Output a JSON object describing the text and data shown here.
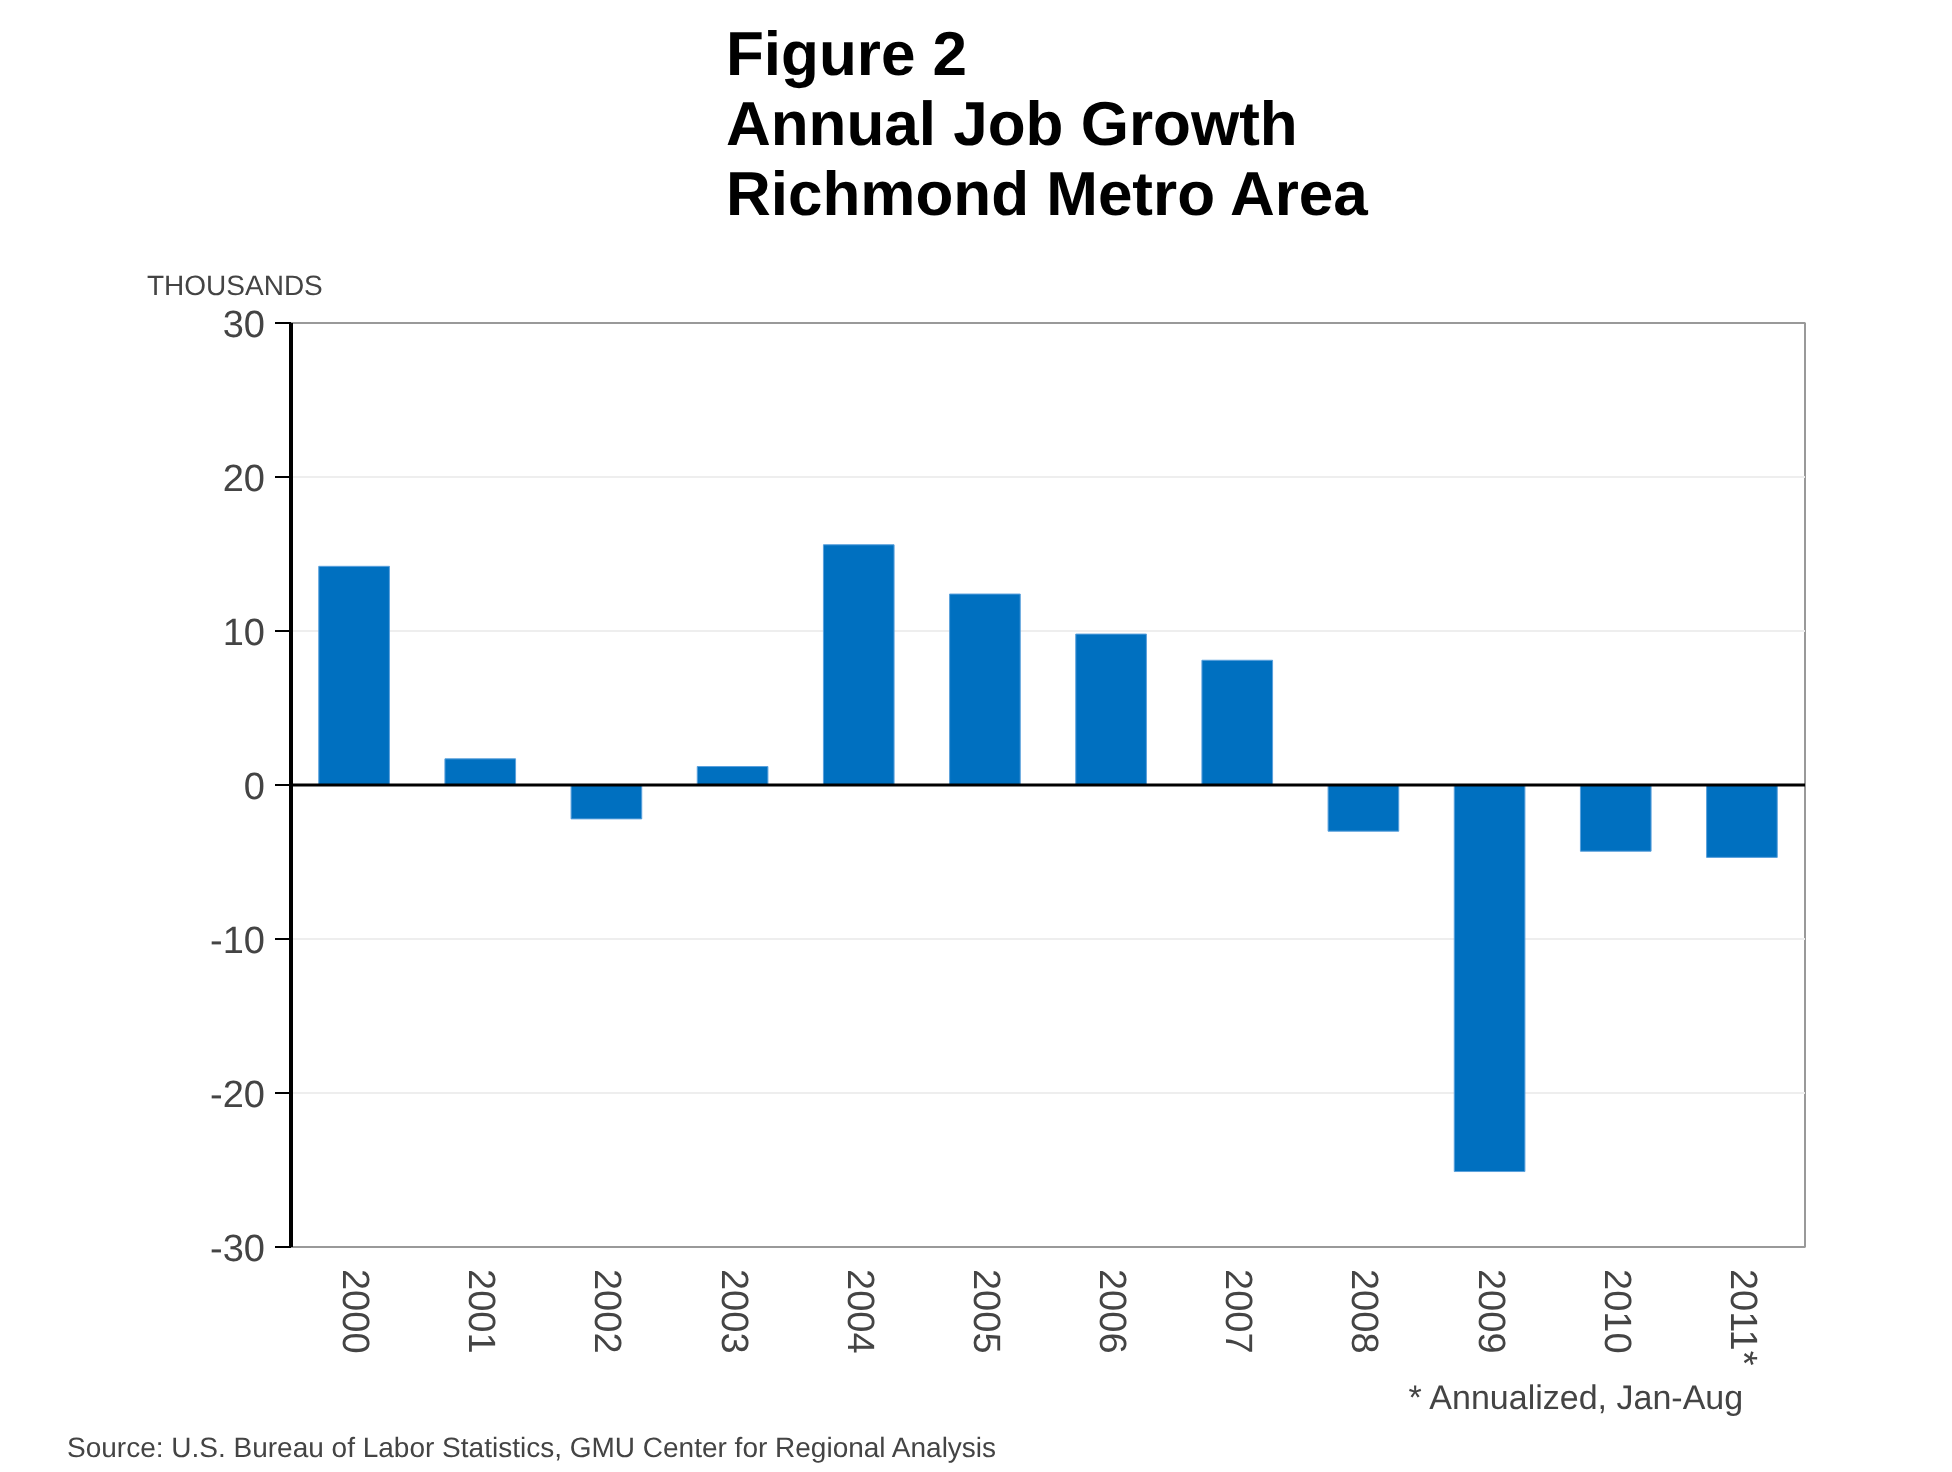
{
  "chart_data": {
    "type": "bar",
    "title": "Figure 2\nAnnual Job Growth\nRichmond Metro Area",
    "ylabel": "THOUSANDS",
    "categories": [
      "2000",
      "2001",
      "2002",
      "2003",
      "2004",
      "2005",
      "2006",
      "2007",
      "2008",
      "2009",
      "2010",
      "2011*"
    ],
    "values": [
      14.2,
      1.7,
      -2.2,
      1.2,
      15.6,
      12.4,
      9.8,
      8.1,
      -3.0,
      -25.1,
      -4.3,
      -4.7
    ],
    "color": "#0070c0",
    "ylim": [
      -30,
      30
    ],
    "yticks": [
      -30,
      -20,
      -10,
      0,
      10,
      20,
      30
    ],
    "grid": "y",
    "legend": false,
    "annotations": [
      "* Annualized, Jan-Aug",
      "Source:  U.S. Bureau of Labor Statistics, GMU Center for Regional Analysis"
    ]
  }
}
